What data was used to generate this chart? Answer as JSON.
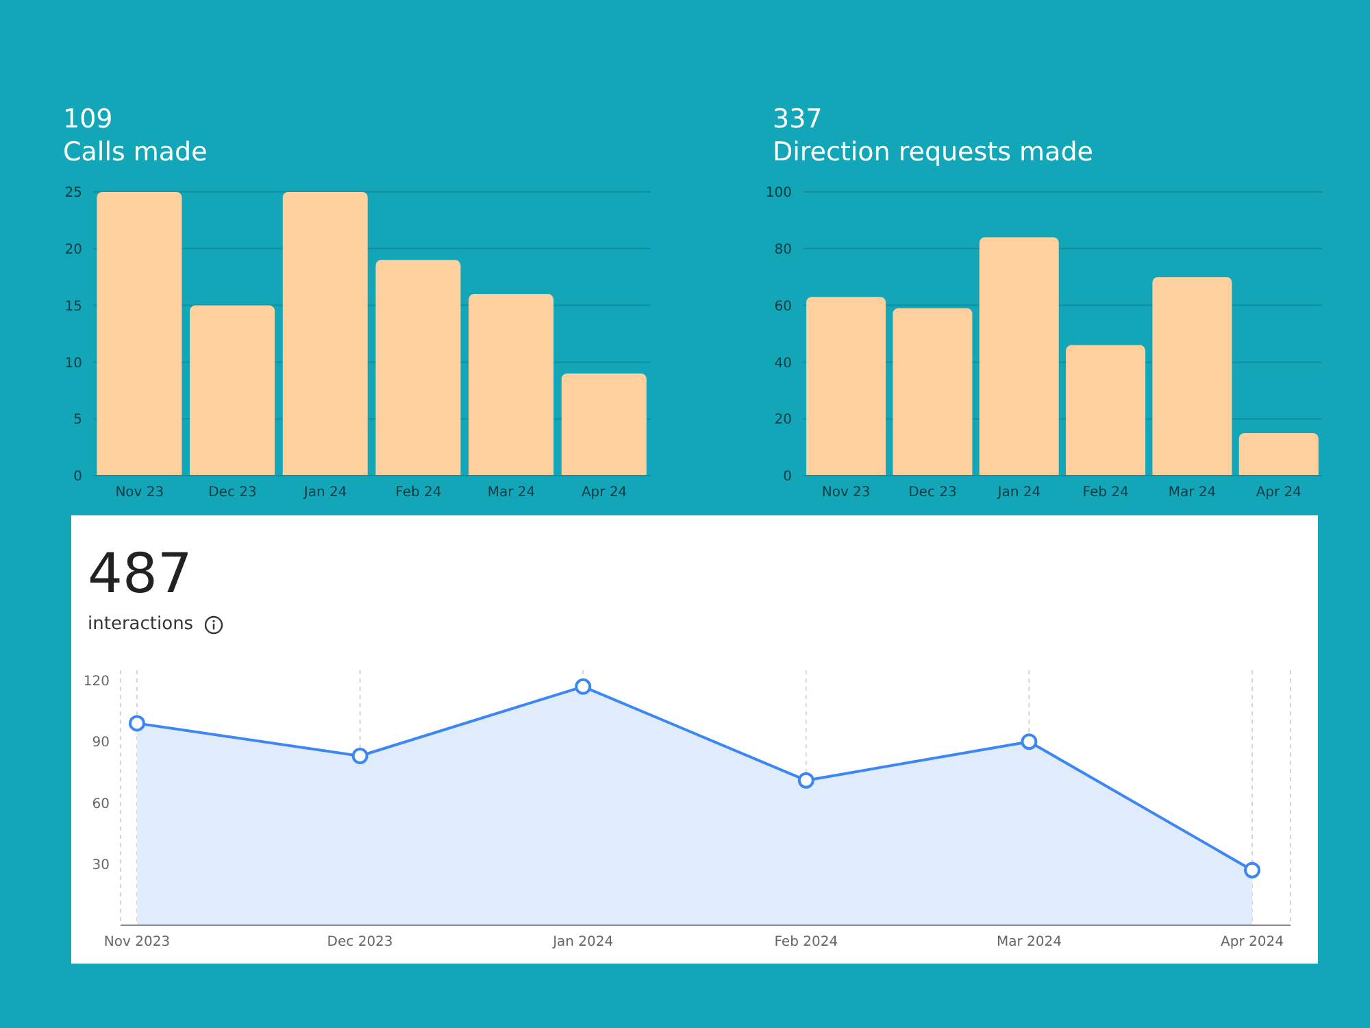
{
  "chart_data": [
    {
      "type": "bar",
      "title": "109",
      "subtitle": "Calls made",
      "categories": [
        "Nov 23",
        "Dec 23",
        "Jan 24",
        "Feb 24",
        "Mar 24",
        "Apr 24"
      ],
      "values": [
        25,
        15,
        25,
        19,
        16,
        9
      ],
      "color": "#fed09e",
      "ylim": [
        0,
        25
      ],
      "yticks": [
        0,
        5,
        10,
        15,
        20,
        25
      ],
      "grid": "y"
    },
    {
      "type": "bar",
      "title": "337",
      "subtitle": "Direction requests made",
      "categories": [
        "Nov 23",
        "Dec 23",
        "Jan 24",
        "Feb 24",
        "Mar 24",
        "Apr 24"
      ],
      "values": [
        63,
        59,
        84,
        46,
        70,
        15
      ],
      "color": "#fed09e",
      "ylim": [
        0,
        100
      ],
      "yticks": [
        0,
        20,
        40,
        60,
        80,
        100
      ],
      "grid": "y"
    },
    {
      "type": "area",
      "title": "487",
      "subtitle": "interactions",
      "categories": [
        "Nov 2023",
        "Dec 2023",
        "Jan 2024",
        "Feb 2024",
        "Mar 2024",
        "Apr 2024"
      ],
      "values": [
        99,
        83,
        117,
        71,
        90,
        27
      ],
      "color": "#3d87f5",
      "ylim": [
        0,
        125
      ],
      "yticks": [
        30,
        60,
        90,
        120
      ],
      "grid": "x",
      "marker": "circle"
    }
  ]
}
